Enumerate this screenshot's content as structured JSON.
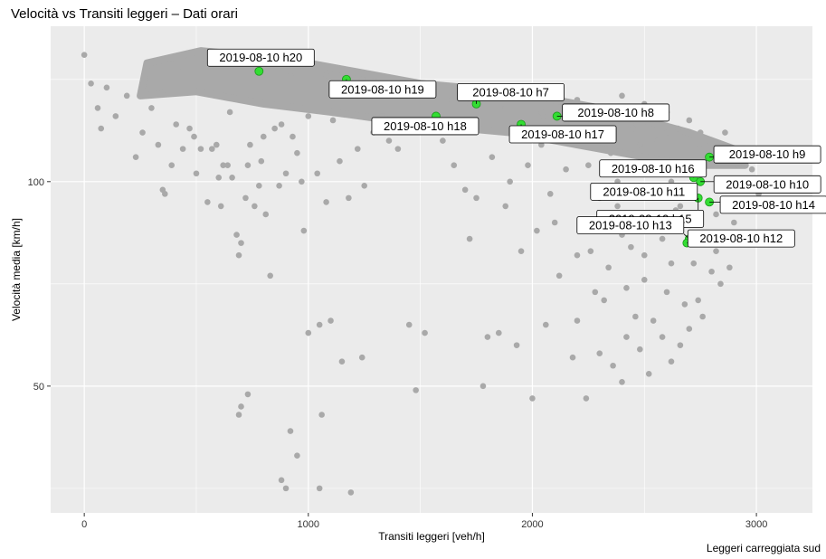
{
  "chart_data": {
    "type": "scatter",
    "title": "Velocità vs Transiti leggeri – Dati orari",
    "caption": "Leggeri carreggiata sud",
    "xlabel": "Transiti leggeri [veh/h]",
    "ylabel": "Velocità media [km/h]",
    "xlim": [
      -150,
      3250
    ],
    "ylim": [
      19,
      138
    ],
    "xticks": [
      0,
      1000,
      2000,
      3000
    ],
    "yticks": [
      50,
      100
    ],
    "grid": true,
    "colors": {
      "background": "#ebebeb",
      "points": "#a9a9a9",
      "highlight": "#33dd33",
      "grid": "#ffffff"
    },
    "background_points": [
      [
        0,
        131
      ],
      [
        30,
        124
      ],
      [
        60,
        118
      ],
      [
        75,
        113
      ],
      [
        100,
        123
      ],
      [
        140,
        116
      ],
      [
        190,
        121
      ],
      [
        230,
        106
      ],
      [
        260,
        112
      ],
      [
        300,
        118
      ],
      [
        330,
        109
      ],
      [
        350,
        98
      ],
      [
        360,
        97
      ],
      [
        390,
        104
      ],
      [
        410,
        114
      ],
      [
        440,
        108
      ],
      [
        470,
        113
      ],
      [
        490,
        111
      ],
      [
        500,
        102
      ],
      [
        520,
        108
      ],
      [
        550,
        95
      ],
      [
        570,
        108
      ],
      [
        590,
        109
      ],
      [
        600,
        101
      ],
      [
        610,
        94
      ],
      [
        620,
        104
      ],
      [
        640,
        104
      ],
      [
        650,
        117
      ],
      [
        660,
        101
      ],
      [
        680,
        87
      ],
      [
        690,
        82
      ],
      [
        700,
        85
      ],
      [
        720,
        96
      ],
      [
        730,
        104
      ],
      [
        740,
        109
      ],
      [
        760,
        94
      ],
      [
        780,
        99
      ],
      [
        790,
        105
      ],
      [
        800,
        111
      ],
      [
        810,
        92
      ],
      [
        830,
        77
      ],
      [
        850,
        113
      ],
      [
        870,
        99
      ],
      [
        880,
        114
      ],
      [
        900,
        102
      ],
      [
        930,
        111
      ],
      [
        950,
        107
      ],
      [
        970,
        100
      ],
      [
        980,
        88
      ],
      [
        1000,
        116
      ],
      [
        1040,
        102
      ],
      [
        1080,
        95
      ],
      [
        1110,
        115
      ],
      [
        1140,
        105
      ],
      [
        1180,
        96
      ],
      [
        1220,
        108
      ],
      [
        1250,
        99
      ],
      [
        1290,
        112
      ],
      [
        1330,
        116
      ],
      [
        1360,
        110
      ],
      [
        1400,
        108
      ],
      [
        1450,
        65
      ],
      [
        1480,
        49
      ],
      [
        1520,
        63
      ],
      [
        1600,
        110
      ],
      [
        1650,
        104
      ],
      [
        1700,
        98
      ],
      [
        1720,
        86
      ],
      [
        1750,
        96
      ],
      [
        1780,
        50
      ],
      [
        1800,
        62
      ],
      [
        1820,
        106
      ],
      [
        1850,
        63
      ],
      [
        1880,
        94
      ],
      [
        1900,
        100
      ],
      [
        1930,
        60
      ],
      [
        1950,
        83
      ],
      [
        1980,
        104
      ],
      [
        2000,
        47
      ],
      [
        2020,
        88
      ],
      [
        2040,
        109
      ],
      [
        2060,
        65
      ],
      [
        2080,
        97
      ],
      [
        2100,
        90
      ],
      [
        2120,
        77
      ],
      [
        2150,
        103
      ],
      [
        2180,
        57
      ],
      [
        2200,
        66
      ],
      [
        2220,
        112
      ],
      [
        2240,
        47
      ],
      [
        2260,
        83
      ],
      [
        2280,
        99
      ],
      [
        2300,
        58
      ],
      [
        2320,
        71
      ],
      [
        2340,
        88
      ],
      [
        2360,
        55
      ],
      [
        2380,
        94
      ],
      [
        2400,
        51
      ],
      [
        2420,
        74
      ],
      [
        2440,
        84
      ],
      [
        2460,
        67
      ],
      [
        2480,
        109
      ],
      [
        2500,
        76
      ],
      [
        2520,
        53
      ],
      [
        2540,
        66
      ],
      [
        2560,
        90
      ],
      [
        2580,
        62
      ],
      [
        2600,
        73
      ],
      [
        2620,
        56
      ],
      [
        2640,
        93
      ],
      [
        2660,
        60
      ],
      [
        2680,
        70
      ],
      [
        2700,
        64
      ],
      [
        2720,
        80
      ],
      [
        2740,
        71
      ],
      [
        2760,
        67
      ],
      [
        2780,
        86
      ],
      [
        2800,
        78
      ],
      [
        2820,
        83
      ],
      [
        2840,
        75
      ],
      [
        2860,
        87
      ],
      [
        2880,
        79
      ],
      [
        2900,
        90
      ],
      [
        2950,
        95
      ],
      [
        2980,
        103
      ],
      [
        3010,
        97
      ],
      [
        2860,
        112
      ],
      [
        2900,
        108
      ],
      [
        2750,
        112
      ],
      [
        2700,
        115
      ],
      [
        2600,
        117
      ],
      [
        2500,
        119
      ],
      [
        2400,
        121
      ],
      [
        2300,
        118
      ],
      [
        2200,
        120
      ],
      [
        2650,
        113
      ],
      [
        2560,
        110
      ],
      [
        2450,
        113
      ],
      [
        2350,
        107
      ],
      [
        2250,
        104
      ],
      [
        2150,
        114
      ],
      [
        2050,
        116
      ],
      [
        2750,
        108
      ],
      [
        2800,
        104
      ],
      [
        2850,
        99
      ],
      [
        2920,
        104
      ],
      [
        2300,
        96
      ],
      [
        2380,
        100
      ],
      [
        2480,
        102
      ],
      [
        2540,
        97
      ],
      [
        2620,
        100
      ],
      [
        2680,
        105
      ],
      [
        2440,
        92
      ],
      [
        2580,
        86
      ],
      [
        2660,
        94
      ],
      [
        2500,
        82
      ],
      [
        2400,
        87
      ],
      [
        2340,
        79
      ],
      [
        2280,
        73
      ],
      [
        2200,
        82
      ],
      [
        2420,
        62
      ],
      [
        2480,
        59
      ],
      [
        2620,
        80
      ],
      [
        2700,
        90
      ],
      [
        2820,
        92
      ],
      [
        1000,
        63
      ],
      [
        1050,
        65
      ],
      [
        1100,
        66
      ],
      [
        1150,
        56
      ],
      [
        1240,
        57
      ],
      [
        690,
        43
      ],
      [
        700,
        45
      ],
      [
        730,
        48
      ],
      [
        880,
        27
      ],
      [
        900,
        25
      ],
      [
        920,
        39
      ],
      [
        1050,
        25
      ],
      [
        1060,
        43
      ],
      [
        1190,
        24
      ],
      [
        950,
        33
      ],
      [
        350,
        122
      ],
      [
        440,
        127
      ],
      [
        520,
        129
      ],
      [
        600,
        131
      ],
      [
        680,
        128
      ],
      [
        760,
        130
      ],
      [
        840,
        127
      ],
      [
        920,
        126
      ],
      [
        1000,
        128
      ],
      [
        1080,
        126
      ],
      [
        1160,
        127
      ],
      [
        1240,
        125
      ],
      [
        1320,
        124
      ],
      [
        1400,
        122
      ],
      [
        1480,
        121
      ],
      [
        1560,
        123
      ],
      [
        1640,
        120
      ],
      [
        1720,
        119
      ],
      [
        1800,
        121
      ],
      [
        1880,
        118
      ],
      [
        1960,
        120
      ],
      [
        2040,
        117
      ],
      [
        2120,
        121
      ],
      [
        2200,
        118
      ],
      [
        2280,
        115
      ],
      [
        2360,
        117
      ],
      [
        2440,
        114
      ],
      [
        2520,
        116
      ],
      [
        2600,
        112
      ]
    ],
    "dense_cloud": [
      [
        [
          250,
          121
        ],
        [
          280,
          129
        ],
        [
          520,
          132
        ],
        [
          900,
          130
        ],
        [
          1200,
          127
        ],
        [
          1500,
          124
        ],
        [
          1900,
          122
        ],
        [
          2300,
          118
        ],
        [
          2700,
          112
        ],
        [
          2900,
          108
        ],
        [
          2950,
          104
        ],
        [
          2700,
          104
        ],
        [
          2300,
          108
        ],
        [
          1900,
          112
        ],
        [
          1500,
          114
        ],
        [
          1100,
          117
        ],
        [
          800,
          119
        ],
        [
          500,
          122
        ],
        [
          250,
          121
        ]
      ]
    ],
    "highlight_points": [
      {
        "label": "2019-08-10 h20",
        "x": 780,
        "y": 127
      },
      {
        "label": "2019-08-10 h19",
        "x": 1170,
        "y": 125
      },
      {
        "label": "2019-08-10 h7",
        "x": 1750,
        "y": 119
      },
      {
        "label": "2019-08-10 h8",
        "x": 2110,
        "y": 116
      },
      {
        "label": "2019-08-10 h18",
        "x": 1570,
        "y": 116
      },
      {
        "label": "2019-08-10 h17",
        "x": 1950,
        "y": 114
      },
      {
        "label": "2019-08-10 h9",
        "x": 2790,
        "y": 106
      },
      {
        "label": "2019-08-10 h16",
        "x": 2720,
        "y": 101
      },
      {
        "label": "2019-08-10 h10",
        "x": 2750,
        "y": 100
      },
      {
        "label": "2019-08-10 h11",
        "x": 2700,
        "y": 98
      },
      {
        "label": "2019-08-10 h15",
        "x": 2740,
        "y": 96
      },
      {
        "label": "2019-08-10 h14",
        "x": 2790,
        "y": 95
      },
      {
        "label": "2019-08-10 h13",
        "x": 2700,
        "y": 86
      },
      {
        "label": "2019-08-10 h12",
        "x": 2690,
        "y": 85
      }
    ]
  }
}
